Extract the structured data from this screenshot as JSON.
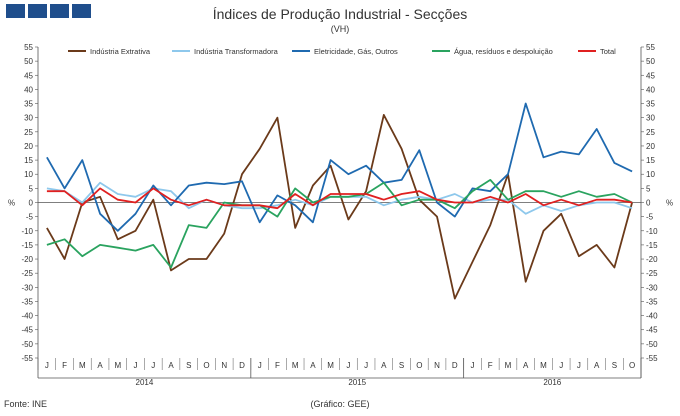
{
  "header": {
    "title": "Índices de Produção Industrial - Secções",
    "subtitle": "(VH)"
  },
  "footer": {
    "source": "Fonte: INE",
    "credit": "(Gráfico: GEE)"
  },
  "chart_data": {
    "type": "line",
    "title": "Índices de Produção Industrial - Secções",
    "subtitle": "(VH)",
    "ylabel_left": "%",
    "ylabel_right": "%",
    "ylim": [
      -55,
      55
    ],
    "ytick_step": 5,
    "grid": false,
    "legend_position": "top",
    "x": [
      "J",
      "F",
      "M",
      "A",
      "M",
      "J",
      "J",
      "A",
      "S",
      "O",
      "N",
      "D",
      "J",
      "F",
      "M",
      "A",
      "M",
      "J",
      "J",
      "A",
      "S",
      "O",
      "N",
      "D",
      "J",
      "F",
      "M",
      "A",
      "M",
      "J",
      "J",
      "A",
      "S",
      "O"
    ],
    "year_labels": [
      "2014",
      "2015",
      "2016"
    ],
    "series": [
      {
        "name": "Indústria Extrativa",
        "color": "#6b3a1a",
        "values": [
          -9,
          -20,
          0,
          2,
          -13,
          -10,
          1,
          -24,
          -20,
          -20,
          -11,
          10,
          19,
          30,
          -9,
          6,
          13,
          -6,
          4,
          31,
          19,
          1,
          -5,
          -34,
          -21,
          -8,
          10,
          -28,
          -10,
          -4,
          -19,
          -15,
          -23,
          0
        ]
      },
      {
        "name": "Indústria Transformadora",
        "color": "#8ec8ec",
        "values": [
          5,
          4,
          0,
          7,
          3,
          2,
          5,
          4,
          -2,
          1,
          -1,
          -2,
          -2,
          -1,
          1,
          -1,
          2,
          2,
          2,
          -1,
          1,
          2,
          1,
          3,
          0,
          1,
          1,
          -4,
          -1,
          -3,
          -1,
          0,
          0,
          -2
        ]
      },
      {
        "name": "Eletricidade, Gás, Outros",
        "color": "#1f6ab0",
        "values": [
          16,
          5,
          15,
          -4,
          -10,
          -4,
          6,
          -1,
          6,
          7,
          6.5,
          7.5,
          -7,
          2.5,
          -1,
          -7,
          15,
          10,
          13,
          7,
          8,
          18.5,
          0,
          -5,
          5,
          4,
          10,
          35,
          16,
          18,
          17,
          26,
          14,
          11
        ]
      },
      {
        "name": "Água, resíduos e despoluição",
        "color": "#2aa35f",
        "values": [
          -15,
          -13,
          -19,
          -15,
          -16,
          -17,
          -15,
          -23,
          -8,
          -9,
          0,
          -1,
          -1,
          -5,
          5,
          0,
          2,
          2,
          3,
          7,
          -1,
          1,
          1,
          -2,
          4,
          8,
          1,
          4,
          4,
          2,
          4,
          2,
          3,
          0
        ]
      },
      {
        "name": "Total",
        "color": "#e02020",
        "values": [
          4,
          4,
          -1,
          5,
          1,
          0,
          5,
          1,
          -1,
          1,
          -1,
          -1,
          -1,
          -2,
          3,
          -1,
          3,
          3,
          3,
          1,
          3,
          4,
          1,
          0,
          0,
          2,
          0,
          3,
          -1,
          1,
          -1,
          1,
          1,
          0
        ]
      }
    ]
  }
}
